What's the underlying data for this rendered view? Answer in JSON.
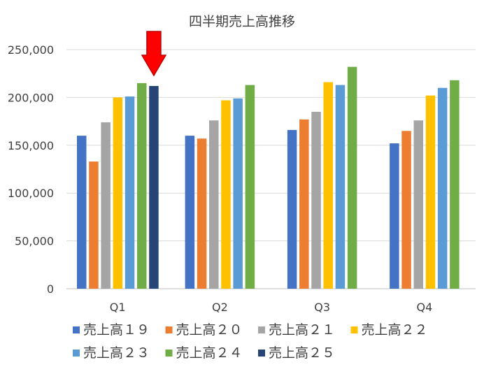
{
  "chart_data": {
    "type": "bar",
    "title": "四半期売上高推移",
    "xlabel": "",
    "ylabel": "",
    "ylim": [
      0,
      250000
    ],
    "yticks": [
      0,
      50000,
      100000,
      150000,
      200000,
      250000
    ],
    "ytick_labels": [
      "0",
      "50,000",
      "100,000",
      "150,000",
      "200,000",
      "250,000"
    ],
    "grid": true,
    "legend_position": "bottom",
    "categories": [
      "Q1",
      "Q2",
      "Q3",
      "Q4"
    ],
    "series": [
      {
        "name": "売上高１９",
        "color": "#4472C4",
        "values": [
          160000,
          160000,
          166000,
          152000
        ]
      },
      {
        "name": "売上高２０",
        "color": "#ED7D31",
        "values": [
          133000,
          157000,
          177000,
          165000
        ]
      },
      {
        "name": "売上高２１",
        "color": "#A5A5A5",
        "values": [
          174000,
          176000,
          185000,
          176000
        ]
      },
      {
        "name": "売上高２２",
        "color": "#FFC000",
        "values": [
          200000,
          197000,
          216000,
          202000
        ]
      },
      {
        "name": "売上高２３",
        "color": "#5B9BD5",
        "values": [
          201000,
          199000,
          213000,
          210000
        ]
      },
      {
        "name": "売上高２４",
        "color": "#70AD47",
        "values": [
          215000,
          213000,
          232000,
          218000
        ]
      },
      {
        "name": "売上高２５",
        "color": "#264478",
        "values": [
          212000,
          null,
          null,
          null
        ]
      }
    ],
    "annotation": {
      "type": "arrow",
      "color": "#FF0000",
      "target_series": "売上高２５",
      "target_category": "Q1"
    }
  }
}
